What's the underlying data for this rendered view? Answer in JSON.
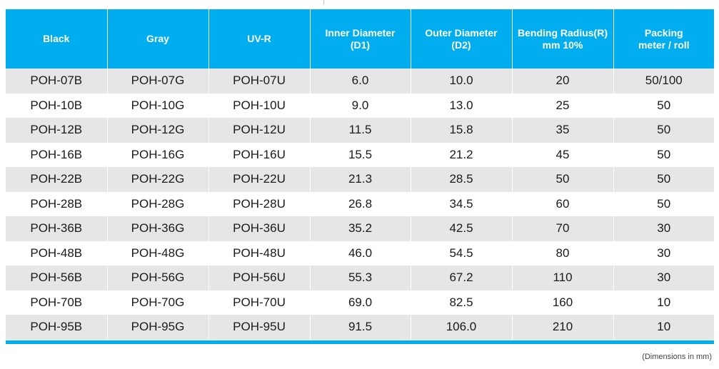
{
  "table": {
    "headers": [
      [
        "Black"
      ],
      [
        "Gray"
      ],
      [
        "UV-R"
      ],
      [
        "Inner Diameter",
        "(D1)"
      ],
      [
        "Outer Diameter",
        "(D2)"
      ],
      [
        "Bending Radius(R)",
        "mm 10%"
      ],
      [
        "Packing",
        "meter / roll"
      ]
    ],
    "rows": [
      [
        "POH-07B",
        "POH-07G",
        "POH-07U",
        "6.0",
        "10.0",
        "20",
        "50/100"
      ],
      [
        "POH-10B",
        "POH-10G",
        "POH-10U",
        "9.0",
        "13.0",
        "25",
        "50"
      ],
      [
        "POH-12B",
        "POH-12G",
        "POH-12U",
        "11.5",
        "15.8",
        "35",
        "50"
      ],
      [
        "POH-16B",
        "POH-16G",
        "POH-16U",
        "15.5",
        "21.2",
        "45",
        "50"
      ],
      [
        "POH-22B",
        "POH-22G",
        "POH-22U",
        "21.3",
        "28.5",
        "50",
        "50"
      ],
      [
        "POH-28B",
        "POH-28G",
        "POH-28U",
        "26.8",
        "34.5",
        "60",
        "50"
      ],
      [
        "POH-36B",
        "POH-36G",
        "POH-36U",
        "35.2",
        "42.5",
        "70",
        "30"
      ],
      [
        "POH-48B",
        "POH-48G",
        "POH-48U",
        "46.0",
        "54.5",
        "80",
        "30"
      ],
      [
        "POH-56B",
        "POH-56G",
        "POH-56U",
        "55.3",
        "67.2",
        "110",
        "30"
      ],
      [
        "POH-70B",
        "POH-70G",
        "POH-70U",
        "69.0",
        "82.5",
        "160",
        "10"
      ],
      [
        "POH-95B",
        "POH-95G",
        "POH-95U",
        "91.5",
        "106.0",
        "210",
        "10"
      ]
    ]
  },
  "footnote": "(Dimensions in mm)",
  "colors": {
    "header_bg": "#00aeef",
    "header_text": "#ffffff",
    "stripe_bg": "#e6e6e6"
  }
}
